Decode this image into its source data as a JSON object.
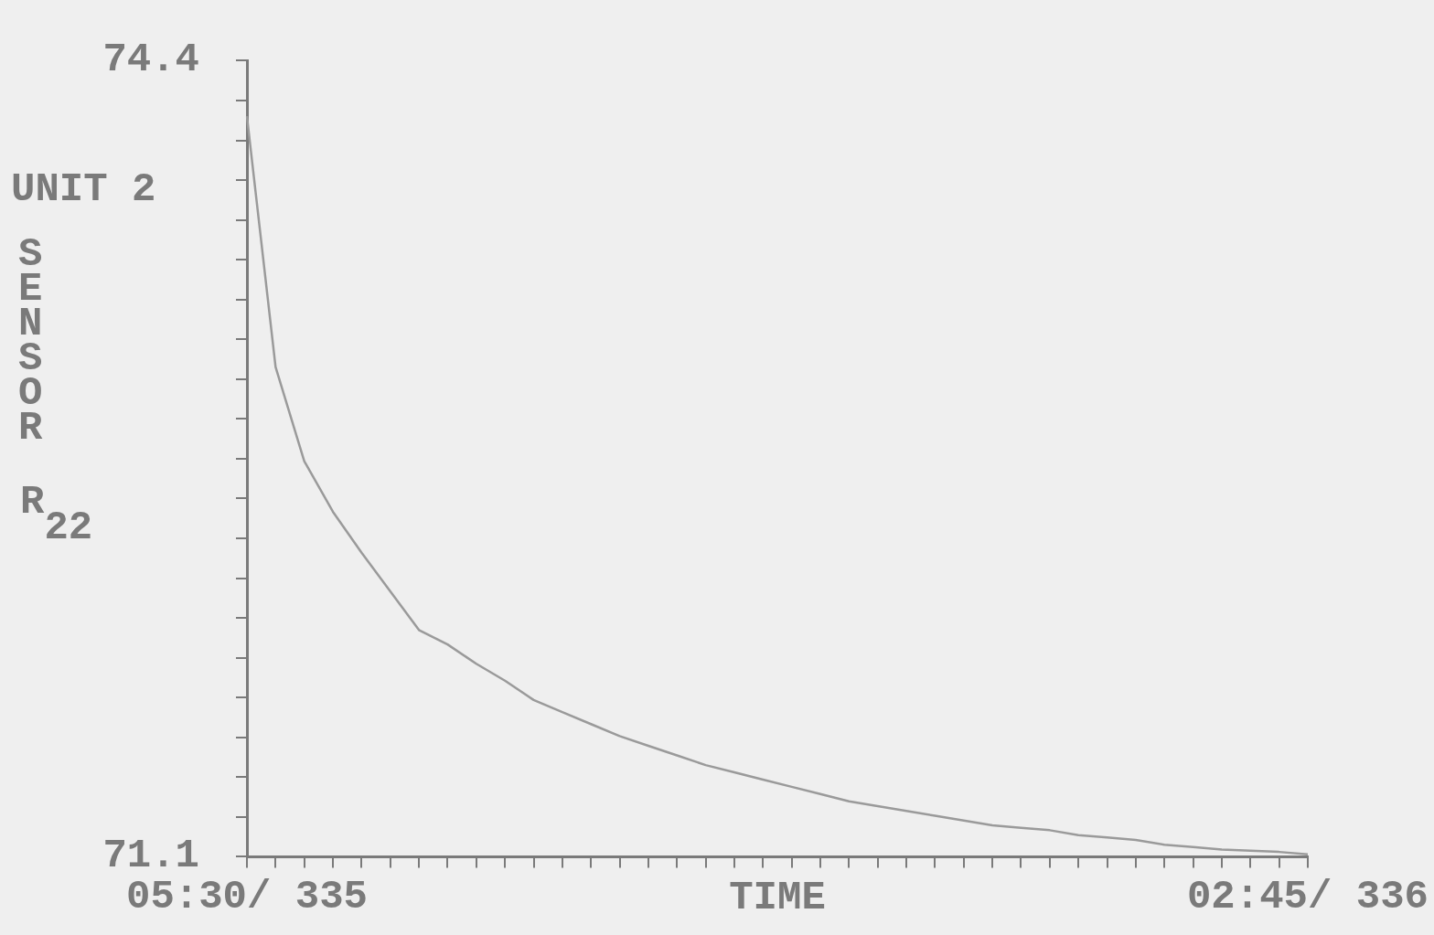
{
  "chart_data": {
    "type": "line",
    "xlabel": "TIME",
    "ylabel": "UNIT 2 SENSOR R$_{22}$",
    "color": "#9a9a9a",
    "grid": false,
    "marker": "none",
    "categories": [
      "05:30/ 335",
      null,
      null,
      null,
      null,
      null,
      null,
      null,
      null,
      null,
      null,
      null,
      null,
      null,
      null,
      null,
      null,
      null,
      null,
      null,
      null,
      null,
      null,
      null,
      null,
      null,
      null,
      null,
      null,
      null,
      null,
      null,
      null,
      null,
      null,
      null,
      null,
      "02:45/ 336"
    ],
    "values": [
      74.17,
      73.13,
      72.74,
      72.53,
      72.36,
      72.2,
      72.04,
      71.98,
      71.9,
      71.83,
      71.75,
      71.7,
      71.65,
      71.6,
      71.56,
      71.52,
      71.48,
      71.45,
      71.42,
      71.39,
      71.36,
      71.33,
      71.31,
      71.29,
      71.27,
      71.25,
      71.23,
      71.22,
      71.21,
      71.19,
      71.18,
      71.17,
      71.15,
      71.14,
      71.13,
      71.125,
      71.12,
      71.11
    ],
    "ylim": [
      71.1,
      74.4
    ],
    "yticks": [
      71.1,
      {
        "value": 71.265,
        "label": null
      },
      {
        "value": 71.43,
        "label": null
      },
      {
        "value": 71.595,
        "label": null
      },
      {
        "value": 71.76,
        "label": null
      },
      {
        "value": 71.925,
        "label": null
      },
      {
        "value": 72.09,
        "label": null
      },
      {
        "value": 72.255,
        "label": null
      },
      {
        "value": 72.42,
        "label": null
      },
      {
        "value": 72.585,
        "label": null
      },
      {
        "value": 72.75,
        "label": null
      },
      {
        "value": 72.915,
        "label": null
      },
      {
        "value": 73.08,
        "label": null
      },
      {
        "value": 73.245,
        "label": null
      },
      {
        "value": 73.41,
        "label": null
      },
      {
        "value": 73.575,
        "label": null
      },
      {
        "value": 73.74,
        "label": null
      },
      {
        "value": 73.905,
        "label": null
      },
      {
        "value": 74.07,
        "label": null
      },
      {
        "value": 74.235,
        "label": null
      },
      74.4
    ]
  }
}
